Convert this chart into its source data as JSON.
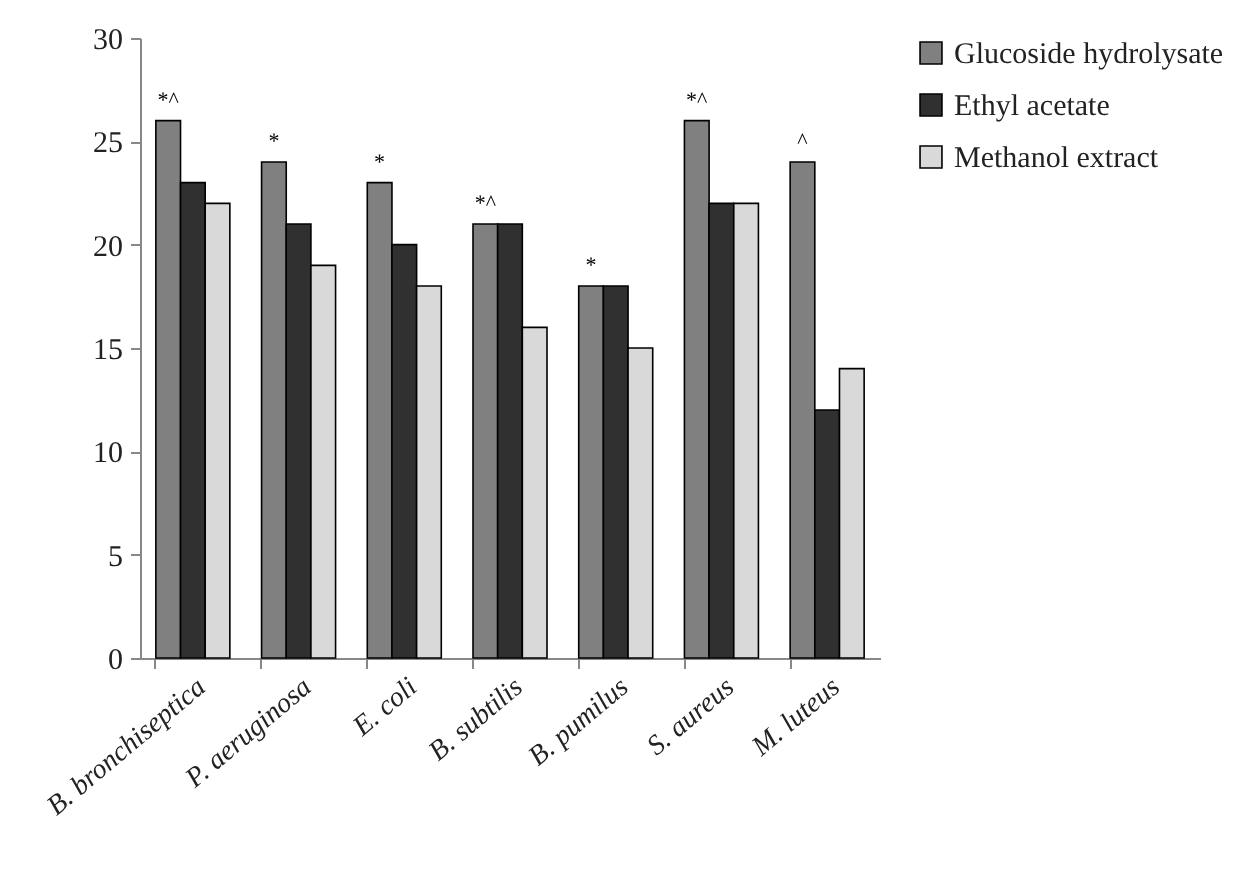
{
  "chart_data": {
    "type": "bar",
    "categories": [
      "B. bronchiseptica",
      "P. aeruginosa",
      "E. coli",
      "B. subtilis",
      "B. pumilus",
      "S. aureus",
      "M. luteus"
    ],
    "series": [
      {
        "name": "Glucoside hydrolysate",
        "color": "#808080",
        "values": [
          26,
          24,
          23,
          21,
          18,
          26,
          24
        ]
      },
      {
        "name": "Ethyl acetate",
        "color": "#303030",
        "values": [
          23,
          21,
          20,
          21,
          18,
          22,
          12
        ]
      },
      {
        "name": "Methanol extract",
        "color": "#d9d9d9",
        "values": [
          22,
          19,
          18,
          16,
          15,
          22,
          14
        ]
      }
    ],
    "ylim": [
      0,
      30
    ],
    "yticks": [
      0,
      5,
      10,
      15,
      20,
      25,
      30
    ],
    "grid": false,
    "legend": "right",
    "annotations": [
      "*^",
      "*",
      "*",
      "*^",
      "*",
      "*^",
      "^"
    ]
  }
}
